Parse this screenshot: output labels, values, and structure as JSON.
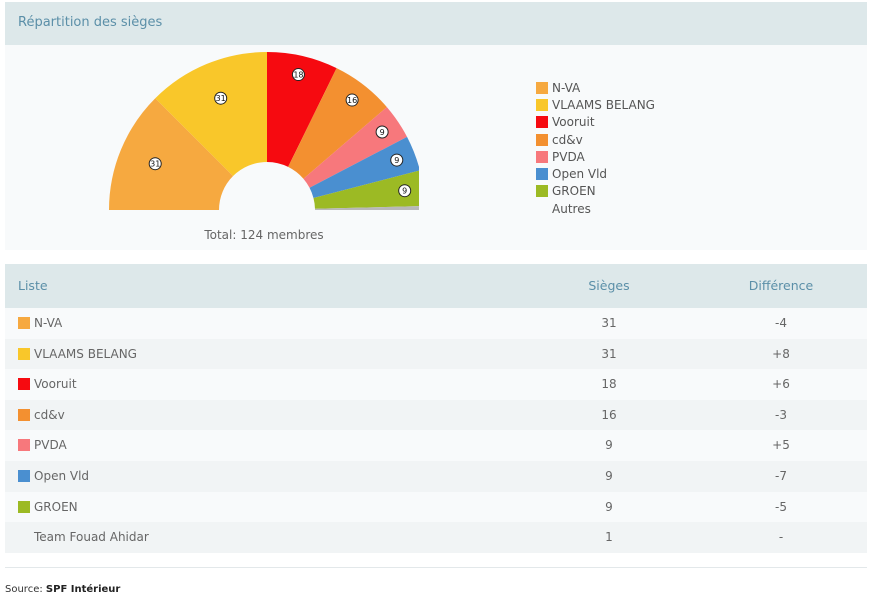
{
  "header": {
    "title": "Répartition des sièges"
  },
  "chart_data": {
    "type": "pie",
    "variant": "parliament-semicircle",
    "title": "Répartition des sièges",
    "total_label": "Total: 124 membres",
    "series": [
      {
        "name": "N-VA",
        "value": 31,
        "color": "#f6a940"
      },
      {
        "name": "VLAAMS BELANG",
        "value": 31,
        "color": "#f9c72a"
      },
      {
        "name": "Vooruit",
        "value": 18,
        "color": "#f60a10"
      },
      {
        "name": "cd&v",
        "value": 16,
        "color": "#f39030"
      },
      {
        "name": "PVDA",
        "value": 9,
        "color": "#f7787c"
      },
      {
        "name": "Open Vld",
        "value": 9,
        "color": "#4a8fd0"
      },
      {
        "name": "GROEN",
        "value": 9,
        "color": "#9cba24"
      },
      {
        "name": "Autres",
        "value": 1,
        "color": "#b8b8b8"
      }
    ],
    "legend_placement": "right"
  },
  "table": {
    "headers": {
      "list": "Liste",
      "seats": "Sièges",
      "diff": "Différence"
    },
    "rows": [
      {
        "name": "N-VA",
        "seats": "31",
        "diff": "-4",
        "color": "#f6a940"
      },
      {
        "name": "VLAAMS BELANG",
        "seats": "31",
        "diff": "+8",
        "color": "#f9c72a"
      },
      {
        "name": "Vooruit",
        "seats": "18",
        "diff": "+6",
        "color": "#f60a10"
      },
      {
        "name": "cd&v",
        "seats": "16",
        "diff": "-3",
        "color": "#f39030"
      },
      {
        "name": "PVDA",
        "seats": "9",
        "diff": "+5",
        "color": "#f7787c"
      },
      {
        "name": "Open Vld",
        "seats": "9",
        "diff": "-7",
        "color": "#4a8fd0"
      },
      {
        "name": "GROEN",
        "seats": "9",
        "diff": "-5",
        "color": "#9cba24"
      },
      {
        "name": "Team Fouad Ahidar",
        "seats": "1",
        "diff": "-",
        "color": ""
      }
    ]
  },
  "source": {
    "label": "Source:",
    "name": "SPF Intérieur"
  }
}
